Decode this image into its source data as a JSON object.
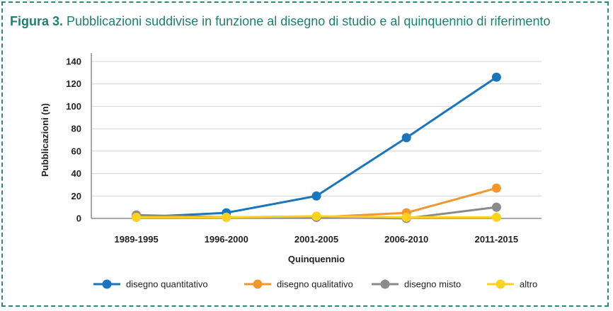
{
  "figure": {
    "label": "Figura 3.",
    "caption": "Pubblicazioni suddivise in funzione al disegno di studio e al quinquennio di riferimento"
  },
  "chart_data": {
    "type": "line",
    "xlabel": "Quinquennio",
    "ylabel": "Pubblicazioni (n)",
    "ylim": [
      0,
      140
    ],
    "yticks": [
      "0",
      "20",
      "40",
      "60",
      "80",
      "100",
      "120",
      "140"
    ],
    "categories": [
      "1989-1995",
      "1996-2000",
      "2001-2005",
      "2006-2010",
      "2011-2015"
    ],
    "grid": "horizontal",
    "legend_position": "bottom",
    "series": [
      {
        "name": "disegno quantitativo",
        "color": "#1a75bb",
        "values": [
          1,
          5,
          20,
          72,
          126
        ]
      },
      {
        "name": "disegno qualitativo",
        "color": "#f2962e",
        "values": [
          2,
          1,
          1,
          5,
          27
        ]
      },
      {
        "name": "disegno misto",
        "color": "#8a8a8a",
        "values": [
          3,
          1,
          1,
          0,
          10
        ]
      },
      {
        "name": "altro",
        "color": "#ffd21f",
        "values": [
          1,
          1,
          2,
          1,
          1
        ]
      }
    ]
  }
}
